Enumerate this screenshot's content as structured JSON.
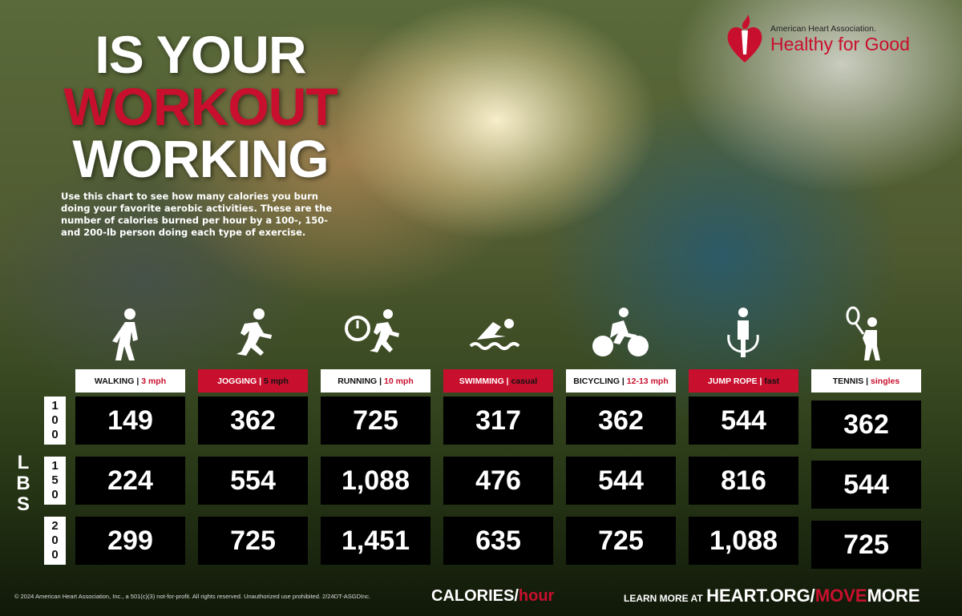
{
  "title": {
    "line1": "IS YOUR",
    "line2": "WORKOUT",
    "line3": "WORKING"
  },
  "intro": "Use this chart to see how many calories you burn doing your favorite aerobic activities. These are the number of calories burned per hour by a 100-, 150- and 200-lb person doing each type of exercise.",
  "logo": {
    "org": "American Heart Association.",
    "tagline": "Healthy for Good"
  },
  "colors": {
    "accent": "#c8102e",
    "cell": "#000000",
    "header_light": "#ffffff"
  },
  "weights": {
    "unit": "LBS",
    "rows": [
      "100",
      "150",
      "200"
    ]
  },
  "activities": [
    {
      "name": "WALKING",
      "detail": "3 mph",
      "icon": "walking-icon",
      "values": [
        "149",
        "224",
        "299"
      ]
    },
    {
      "name": "JOGGING",
      "detail": "5 mph",
      "icon": "jogging-icon",
      "values": [
        "362",
        "554",
        "725"
      ]
    },
    {
      "name": "RUNNING",
      "detail": "10 mph",
      "icon": "running-stopwatch-icon",
      "values": [
        "725",
        "1,088",
        "1,451"
      ]
    },
    {
      "name": "SWIMMING",
      "detail": "casual",
      "icon": "swimming-icon",
      "values": [
        "317",
        "476",
        "635"
      ]
    },
    {
      "name": "BICYCLING",
      "detail": "12-13 mph",
      "icon": "bicycling-icon",
      "values": [
        "362",
        "544",
        "725"
      ]
    },
    {
      "name": "JUMP ROPE",
      "detail": "fast",
      "icon": "jump-rope-icon",
      "values": [
        "544",
        "816",
        "1,088"
      ]
    },
    {
      "name": "TENNIS",
      "detail": "singles",
      "icon": "tennis-icon",
      "values": [
        "362",
        "544",
        "725"
      ]
    }
  ],
  "footer": {
    "copyright": "© 2024 American Heart Association, Inc., a 501(c)(3) not-for-profit. All rights reserved. Unauthorized use prohibited. 2/24DT-ASGDInc.",
    "calories": "CALORIES/",
    "per": "hour",
    "learn": "LEARN MORE AT",
    "url1": "HEART.ORG/",
    "url2": "MOVE",
    "url3": "MORE"
  }
}
